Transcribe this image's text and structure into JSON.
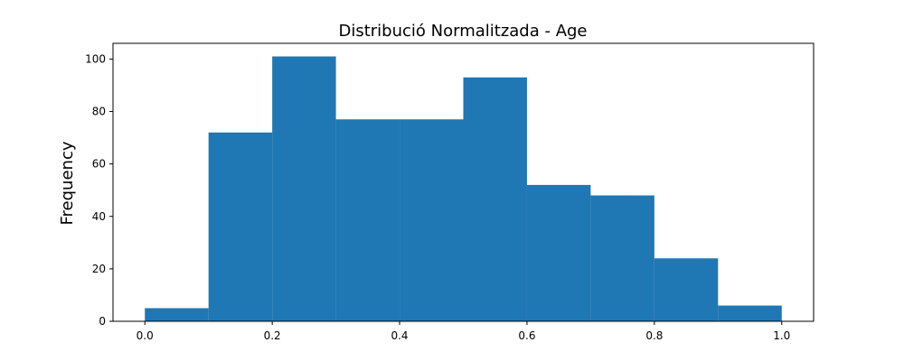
{
  "chart_data": {
    "type": "bar",
    "title": "Distribució Normalitzada - Age",
    "xlabel": "",
    "ylabel": "Frequency",
    "bin_edges": [
      0.0,
      0.1,
      0.2,
      0.3,
      0.4,
      0.5,
      0.6,
      0.7,
      0.8,
      0.9,
      1.0
    ],
    "values": [
      5,
      72,
      101,
      77,
      77,
      93,
      52,
      48,
      24,
      6
    ],
    "xlim": [
      -0.05,
      1.05
    ],
    "ylim": [
      0,
      106
    ],
    "x_ticks": [
      0.0,
      0.2,
      0.4,
      0.6,
      0.8,
      1.0
    ],
    "x_tick_labels": [
      "0.0",
      "0.2",
      "0.4",
      "0.6",
      "0.8",
      "1.0"
    ],
    "y_ticks": [
      0,
      20,
      40,
      60,
      80,
      100
    ],
    "y_tick_labels": [
      "0",
      "20",
      "40",
      "60",
      "80",
      "100"
    ],
    "grid": false,
    "bar_color": "#1f77b4"
  }
}
